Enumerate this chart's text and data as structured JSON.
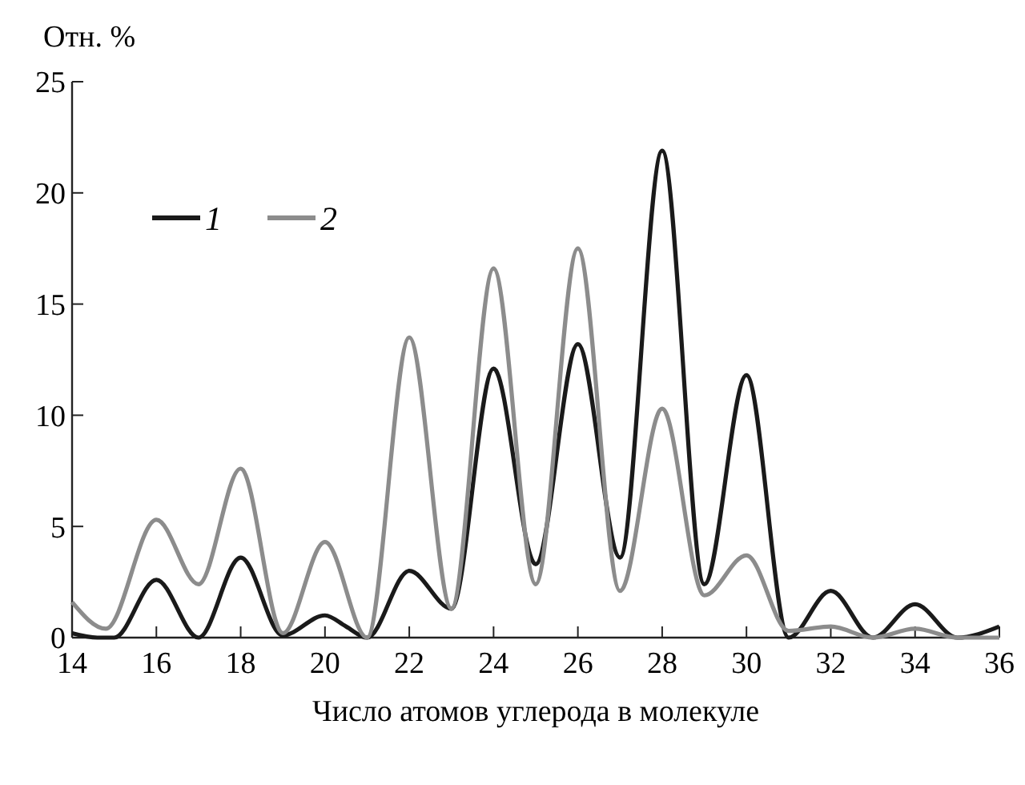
{
  "chart_data": {
    "type": "line",
    "ylabel": "Отн. %",
    "xlabel": "Число атомов углерода в молекуле",
    "xlim": [
      14,
      36
    ],
    "ylim": [
      0,
      25
    ],
    "xticks": [
      14,
      16,
      18,
      20,
      22,
      24,
      26,
      28,
      30,
      32,
      34,
      36
    ],
    "yticks": [
      0,
      5,
      10,
      15,
      20,
      25
    ],
    "legend": "top left",
    "grid": false,
    "marker": "none",
    "line_style": "solid",
    "series": [
      {
        "name": "1",
        "color": "#1a1a1a",
        "x": [
          14,
          14.6,
          15,
          16,
          17,
          18,
          19,
          20,
          20.5,
          21,
          22,
          23,
          24,
          25,
          26,
          27,
          28,
          29,
          30,
          31,
          32,
          33,
          34,
          35,
          36
        ],
        "values": [
          0.2,
          0,
          0,
          2.6,
          0,
          3.6,
          0.1,
          1.0,
          0.5,
          0,
          3.0,
          1.3,
          12.1,
          3.3,
          13.2,
          3.6,
          21.9,
          2.4,
          11.8,
          0,
          2.1,
          0,
          1.5,
          0,
          0.5
        ]
      },
      {
        "name": "2",
        "color": "#8c8c8c",
        "x": [
          14,
          14.8,
          16,
          17,
          18,
          19,
          20,
          21,
          22,
          23,
          24,
          25,
          26,
          27,
          28,
          29,
          30,
          31,
          32,
          33,
          34,
          35,
          36
        ],
        "values": [
          1.6,
          0.4,
          5.3,
          2.4,
          7.6,
          0.2,
          4.3,
          0,
          13.5,
          1.3,
          16.6,
          2.4,
          17.5,
          2.1,
          10.3,
          1.9,
          3.7,
          0.3,
          0.5,
          0,
          0.4,
          0,
          0
        ]
      }
    ]
  }
}
